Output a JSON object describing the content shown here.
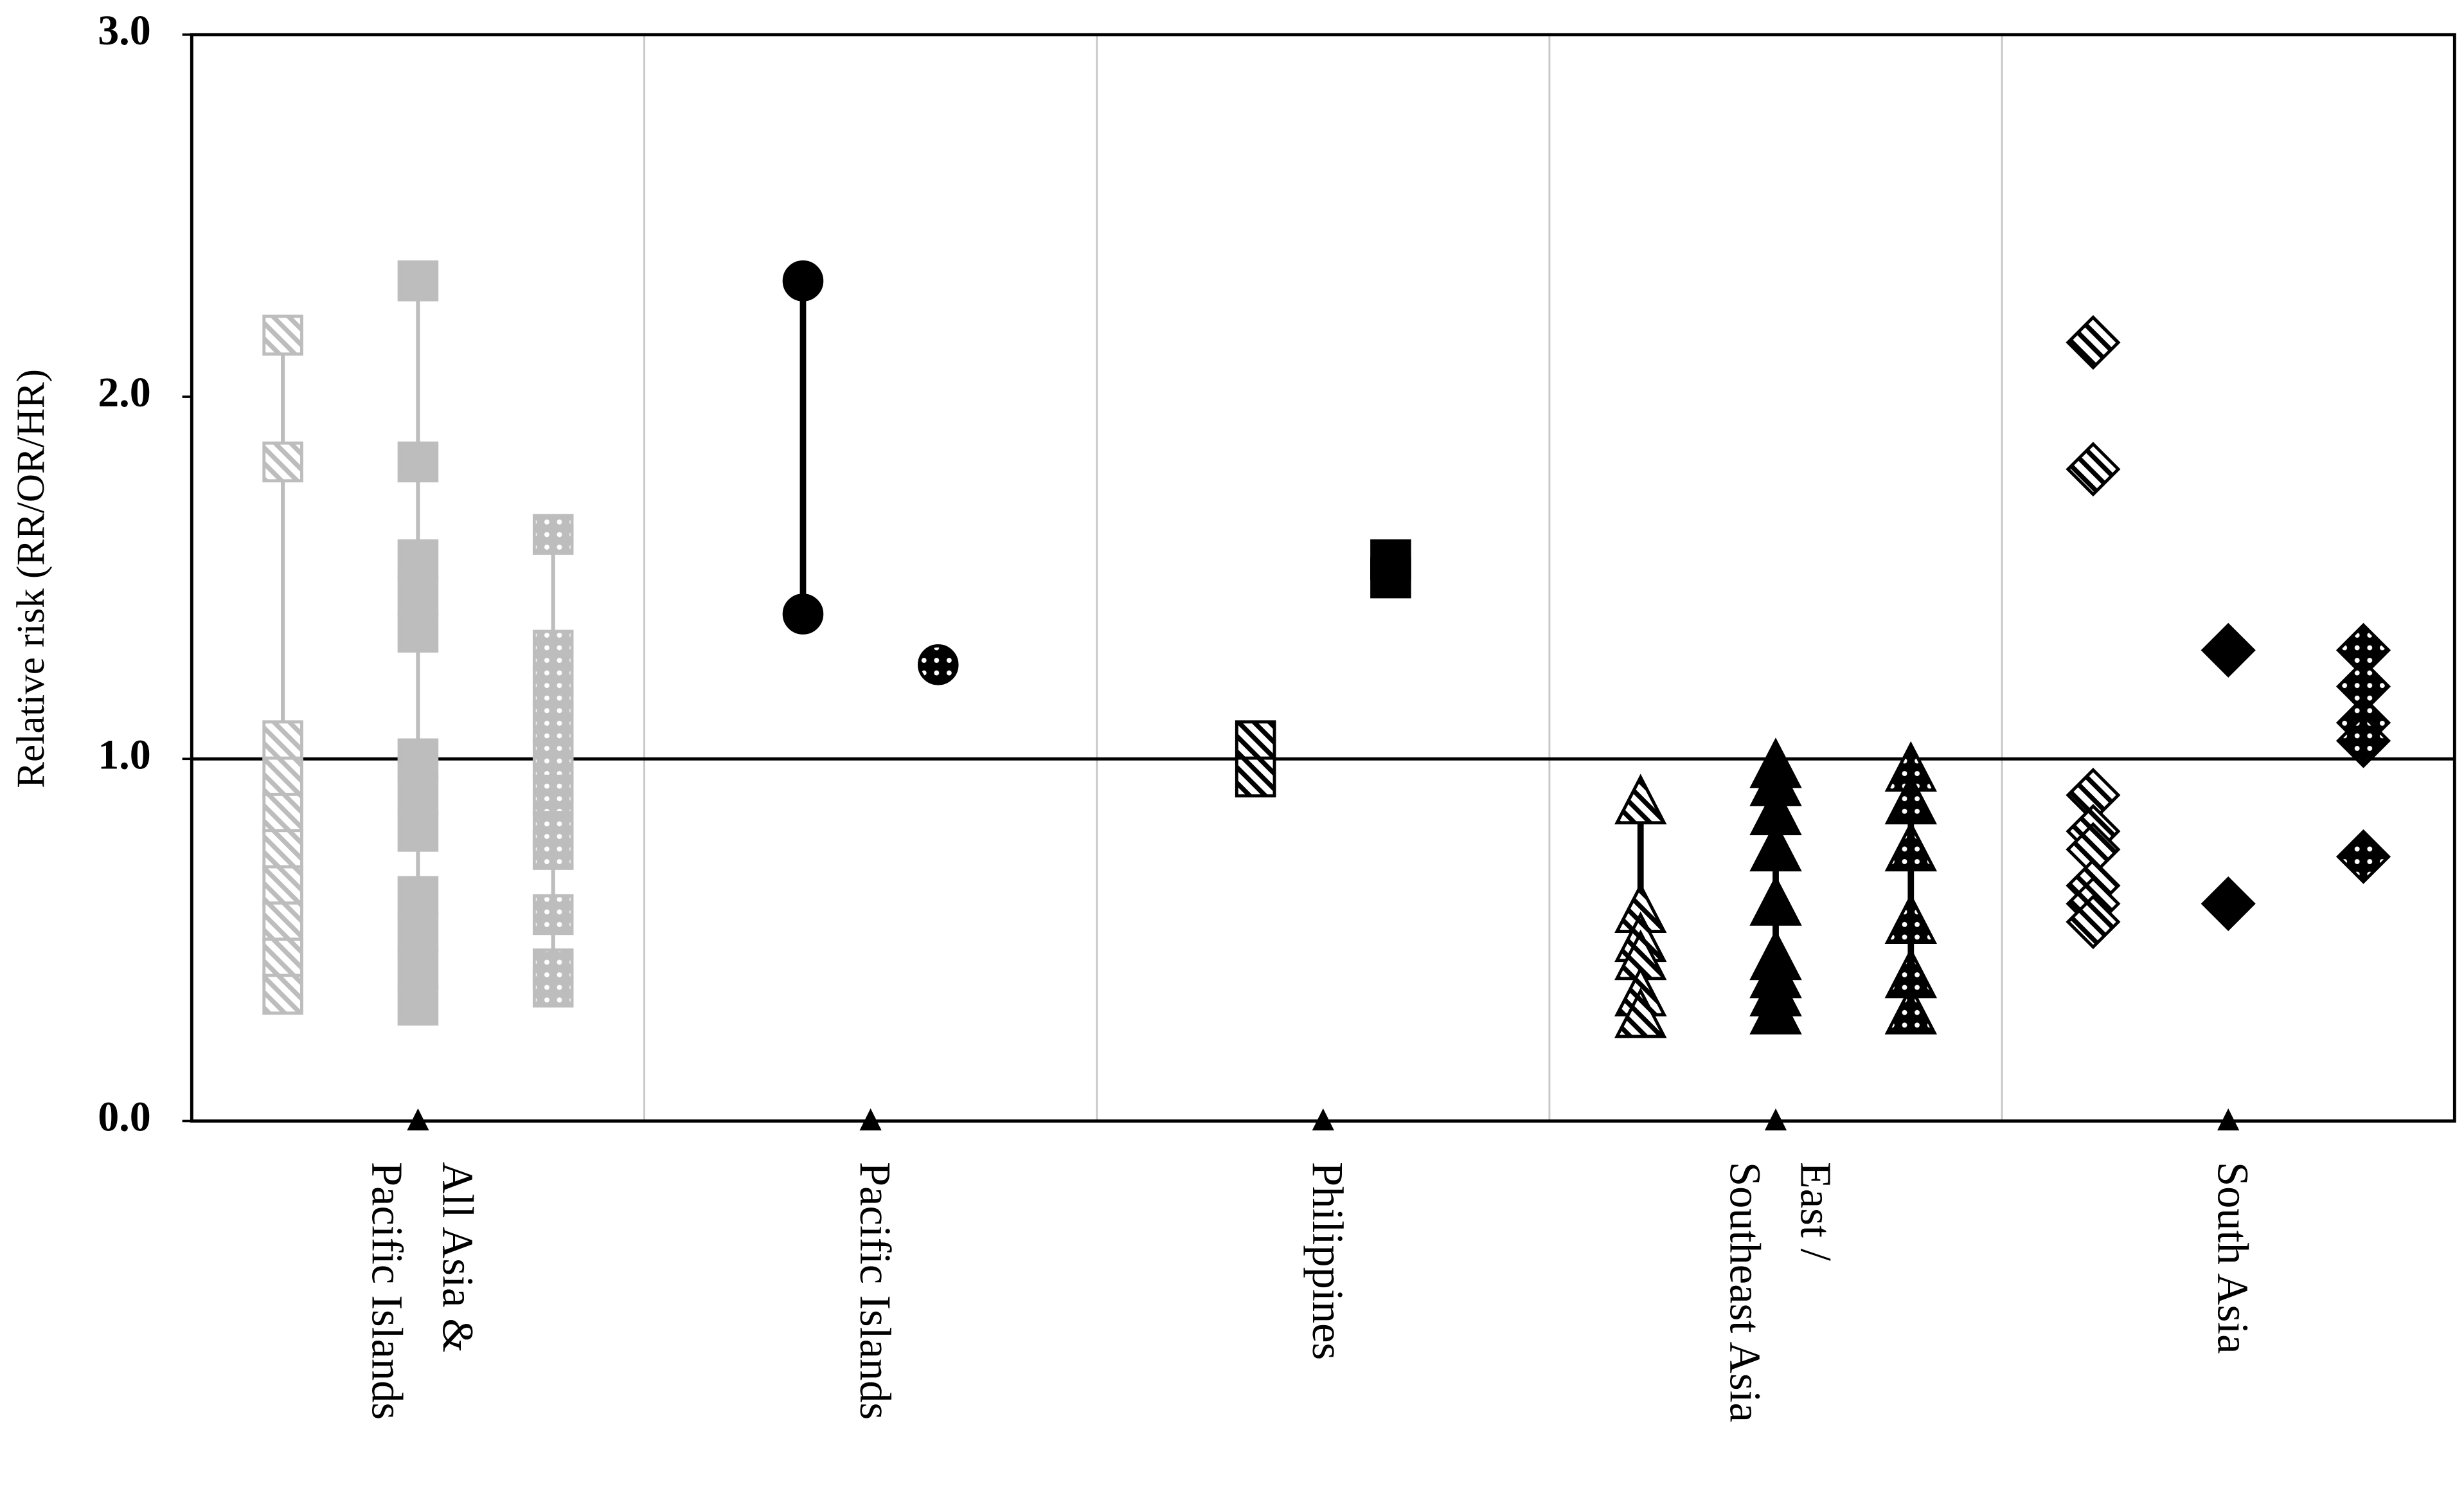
{
  "chart_data": {
    "type": "dot",
    "y_label": "Relative risk (RR/OR/HR)",
    "ylim": [
      0,
      3
    ],
    "yticks": [
      {
        "value": 0,
        "label": "0.0"
      },
      {
        "value": 1,
        "label": "1.0"
      },
      {
        "value": 2,
        "label": "2.0"
      },
      {
        "value": 3,
        "label": "3.0"
      }
    ],
    "reference_line": 1,
    "groups": [
      {
        "label": [
          "All Asia &",
          "Pacific Islands"
        ],
        "series": [
          {
            "marker": "square",
            "fill": "hatch",
            "color": "#bdbdbd",
            "connect": true,
            "values": [
              2.17,
              1.82,
              1.05,
              0.95,
              0.85,
              0.75,
              0.65,
              0.55,
              0.45,
              0.35
            ]
          },
          {
            "marker": "square",
            "fill": "solid",
            "color": "#bdbdbd",
            "connect": true,
            "values": [
              2.32,
              1.82,
              1.55,
              1.45,
              1.35,
              1.0,
              0.9,
              0.8,
              0.62,
              0.52,
              0.42,
              0.32
            ]
          },
          {
            "marker": "square",
            "fill": "dots",
            "color": "#bdbdbd",
            "connect": true,
            "values": [
              1.62,
              1.3,
              1.2,
              1.1,
              1.0,
              0.9,
              0.8,
              0.75,
              0.57,
              0.42,
              0.37
            ]
          }
        ]
      },
      {
        "label": [
          "Pacific Islands"
        ],
        "series": [
          {
            "marker": "circle",
            "fill": "solid",
            "color": "#000000",
            "connect": true,
            "values": [
              2.32,
              1.4
            ]
          },
          {
            "marker": "circle",
            "fill": "dots",
            "color": "#000000",
            "connect": false,
            "values": [
              1.26
            ]
          }
        ]
      },
      {
        "label": [
          "Philippines"
        ],
        "series": [
          {
            "marker": "square",
            "fill": "hatch",
            "color": "#000000",
            "connect": false,
            "values": [
              1.05,
              0.95
            ]
          },
          {
            "marker": "square",
            "fill": "solid",
            "color": "#000000",
            "connect": false,
            "values": [
              1.55,
              1.5
            ]
          }
        ]
      },
      {
        "label": [
          "East /",
          "Southeast Asia"
        ],
        "series": [
          {
            "marker": "triangle",
            "fill": "hatch",
            "color": "#000000",
            "connect": true,
            "values": [
              0.88,
              0.58,
              0.5,
              0.45,
              0.35,
              0.29
            ]
          },
          {
            "marker": "triangle",
            "fill": "solid",
            "color": "#000000",
            "connect": true,
            "values": [
              0.98,
              0.93,
              0.85,
              0.75,
              0.6,
              0.45,
              0.4,
              0.35,
              0.3
            ]
          },
          {
            "marker": "triangle",
            "fill": "dots",
            "color": "#000000",
            "connect": true,
            "values": [
              0.97,
              0.88,
              0.75,
              0.55,
              0.4,
              0.3
            ]
          }
        ]
      },
      {
        "label": [
          "South Asia"
        ],
        "series": [
          {
            "marker": "diamond",
            "fill": "hatch",
            "color": "#000000",
            "connect": false,
            "values": [
              2.15,
              1.8,
              0.9,
              0.8,
              0.75,
              0.65,
              0.6,
              0.55
            ]
          },
          {
            "marker": "diamond",
            "fill": "solid",
            "color": "#000000",
            "connect": false,
            "values": [
              1.3,
              0.6
            ]
          },
          {
            "marker": "diamond",
            "fill": "dots",
            "color": "#000000",
            "connect": false,
            "values": [
              1.3,
              1.2,
              1.1,
              1.05,
              0.73
            ]
          }
        ]
      }
    ]
  }
}
